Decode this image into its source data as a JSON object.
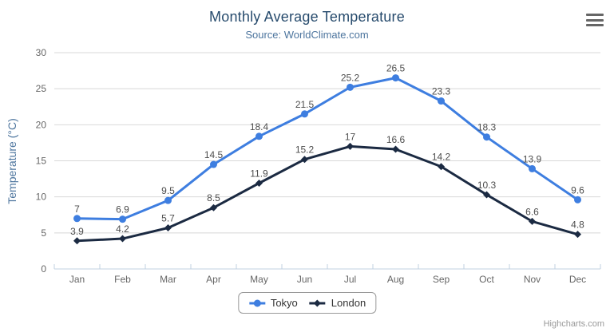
{
  "chart_data": {
    "type": "line",
    "title": "Monthly Average Temperature",
    "subtitle": "Source: WorldClimate.com",
    "categories": [
      "Jan",
      "Feb",
      "Mar",
      "Apr",
      "May",
      "Jun",
      "Jul",
      "Aug",
      "Sep",
      "Oct",
      "Nov",
      "Dec"
    ],
    "series": [
      {
        "name": "Tokyo",
        "color": "#3e7ee0",
        "marker": "circle",
        "values": [
          7,
          6.9,
          9.5,
          14.5,
          18.4,
          21.5,
          25.2,
          26.5,
          23.3,
          18.3,
          13.9,
          9.6
        ]
      },
      {
        "name": "London",
        "color": "#1b2a42",
        "marker": "diamond",
        "values": [
          3.9,
          4.2,
          5.7,
          8.5,
          11.9,
          15.2,
          17,
          16.6,
          14.2,
          10.3,
          6.6,
          4.8
        ]
      }
    ],
    "xlabel": "",
    "ylabel": "Temperature (°C)",
    "ylim": [
      0,
      30
    ],
    "ytick_step": 5,
    "grid": true,
    "data_labels": true,
    "legend_position": "bottom"
  },
  "credits_label": "Highcharts.com",
  "colors": {
    "title": "#274b6d",
    "subtitle": "#4d759e",
    "axis_title": "#4d759e",
    "tick_label": "#666666",
    "data_label": "#4d4d4d",
    "gridline": "#d8d8d8",
    "axis_line": "#c0d0e0",
    "legend_text": "#333333",
    "legend_border": "#999999",
    "credits": "#999999",
    "menu_icon": "#666666"
  }
}
